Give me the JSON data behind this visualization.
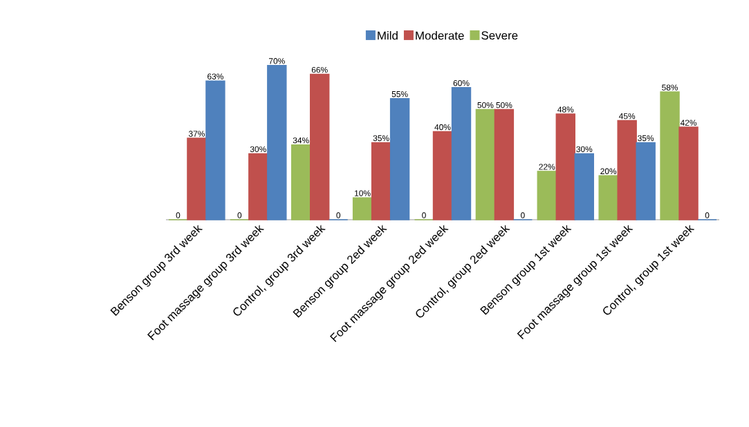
{
  "chart_data": {
    "type": "bar",
    "categories": [
      "Benson group 3rd week",
      "Foot massage group 3rd week",
      "Control,  group 3rd week",
      "Benson group 2ed week",
      "Foot massage  group 2ed week",
      "Control,  group 2ed week",
      "Benson group 1st week",
      "Foot massage group 1st week",
      "Control,  group 1st week"
    ],
    "series": [
      {
        "name": "Mild",
        "color": "#4f81bd",
        "values": [
          63,
          70,
          0,
          55,
          60,
          0,
          30,
          35,
          0
        ],
        "value_labels": [
          "63%",
          "70%",
          "0",
          "55%",
          "60%",
          "0",
          "30%",
          "35%",
          "0"
        ]
      },
      {
        "name": "Moderate",
        "color": "#c0504d",
        "values": [
          37,
          30,
          66,
          35,
          40,
          50,
          48,
          45,
          42
        ],
        "value_labels": [
          "37%",
          "30%",
          "66%",
          "35%",
          "40%",
          "50%",
          "48%",
          "45%",
          "42%"
        ]
      },
      {
        "name": "Severe",
        "color": "#9bbb59",
        "values": [
          0,
          0,
          34,
          10,
          0,
          50,
          22,
          20,
          58
        ],
        "value_labels": [
          "0",
          "0",
          "34%",
          "10%",
          "0",
          "50%",
          "22%",
          "20%",
          "58%"
        ]
      }
    ],
    "legend": "top"
  }
}
